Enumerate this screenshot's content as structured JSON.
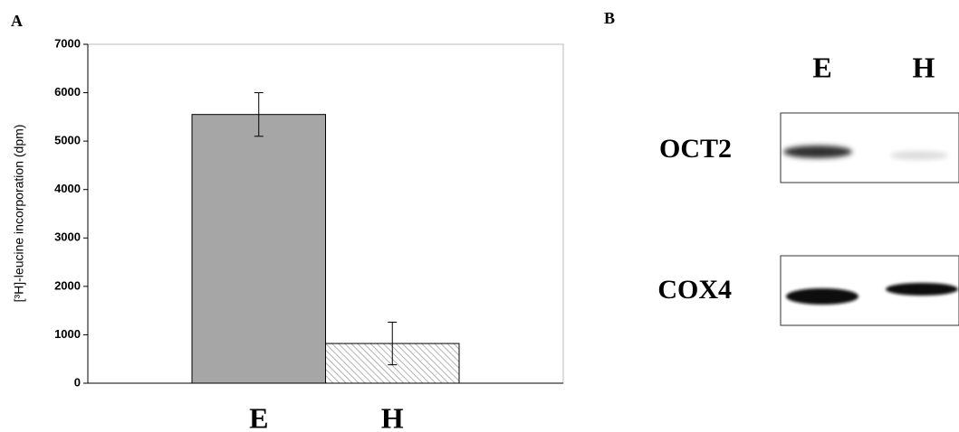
{
  "chart_data": {
    "type": "bar",
    "panel_label": "A",
    "y_label": "[³H]-leucine incorporation (dpm)",
    "categories": [
      "E",
      "H"
    ],
    "values": [
      5550,
      820
    ],
    "errors": [
      450,
      440
    ],
    "colors": [
      "#a6a6a6",
      "#ffffff"
    ],
    "hatch": [
      false,
      true
    ],
    "ylim": [
      0,
      7000
    ],
    "yticks": [
      0,
      1000,
      2000,
      3000,
      4000,
      5000,
      6000,
      7000
    ],
    "grid": false
  },
  "blot": {
    "panel_label": "B",
    "lanes": [
      "E",
      "H"
    ],
    "rows": [
      "OCT2",
      "COX4"
    ]
  }
}
